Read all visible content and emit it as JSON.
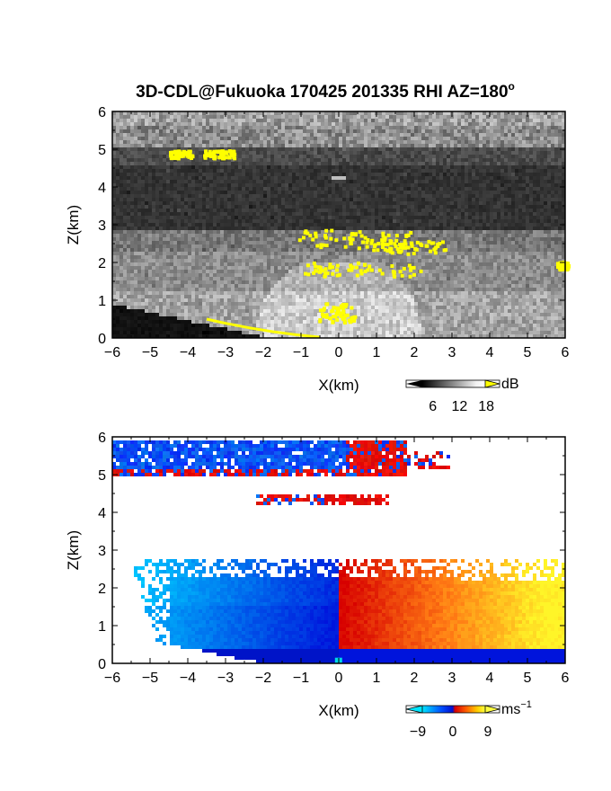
{
  "chart_data": [
    {
      "type": "heatmap",
      "title": "3D-CDL@Fukuoka 170425 201335 RHI AZ=180",
      "title_sup": "o",
      "xlabel": "X(km)",
      "ylabel": "Z(km)",
      "xlim": [
        -6,
        6
      ],
      "ylim": [
        0,
        6
      ],
      "xticks": [
        "-6",
        "-5",
        "-4",
        "-3",
        "-2",
        "-1",
        "0",
        "1",
        "2",
        "3",
        "4",
        "5",
        "6"
      ],
      "yticks": [
        "0",
        "1",
        "2",
        "3",
        "4",
        "5",
        "6"
      ],
      "colorscale": "grayscale",
      "saturation_color": "#ffff00",
      "colorbar": {
        "unit": "dB",
        "ticks": [
          "6",
          "12",
          "18"
        ],
        "range": [
          0,
          21
        ]
      }
    },
    {
      "type": "heatmap",
      "xlabel": "X(km)",
      "ylabel": "Z(km)",
      "xlim": [
        -6,
        6
      ],
      "ylim": [
        0,
        6
      ],
      "xticks": [
        "-6",
        "-5",
        "-4",
        "-3",
        "-2",
        "-1",
        "0",
        "1",
        "2",
        "3",
        "4",
        "5",
        "6"
      ],
      "yticks": [
        "0",
        "1",
        "2",
        "3",
        "4",
        "5",
        "6"
      ],
      "colorscale": [
        "#00e5ff",
        "#0060ff",
        "#0018e0",
        "#e00000",
        "#ff5a00",
        "#ffb000",
        "#ffff30"
      ],
      "colorbar": {
        "unit": "ms",
        "unit_sup": "−1",
        "ticks": [
          "−9",
          "0",
          "9"
        ],
        "range": [
          -12,
          12
        ]
      }
    }
  ]
}
